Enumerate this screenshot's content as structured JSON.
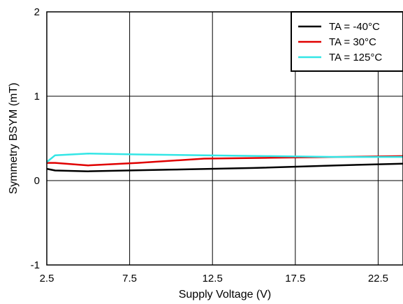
{
  "chart_data": {
    "type": "line",
    "xlabel": "Supply Voltage (V)",
    "ylabel": "Symmetry BSYM (mT)",
    "xlim": [
      2.5,
      24
    ],
    "ylim": [
      -1,
      2
    ],
    "xticks": [
      2.5,
      7.5,
      12.5,
      17.5,
      22.5
    ],
    "xtick_labels": [
      "2.5",
      "7.5",
      "12.5",
      "17.5",
      "22.5"
    ],
    "yticks": [
      -1,
      0,
      1,
      2
    ],
    "ytick_labels": [
      "-1",
      "0",
      "1",
      "2"
    ],
    "grid": true,
    "legend_position": "top-right",
    "series": [
      {
        "name": "TA = -40°C",
        "color": "#000000",
        "x": [
          2.5,
          3,
          5,
          10,
          15,
          20,
          24
        ],
        "y": [
          0.14,
          0.12,
          0.11,
          0.13,
          0.15,
          0.18,
          0.2
        ]
      },
      {
        "name": "TA = 30°C",
        "color": "#e00000",
        "x": [
          2.5,
          3,
          5,
          8,
          12,
          16,
          20,
          24
        ],
        "y": [
          0.21,
          0.21,
          0.18,
          0.21,
          0.26,
          0.27,
          0.28,
          0.29
        ]
      },
      {
        "name": "TA = 125°C",
        "color": "#33e6e6",
        "x": [
          2.5,
          3,
          5,
          8,
          12,
          16,
          20,
          24
        ],
        "y": [
          0.22,
          0.3,
          0.32,
          0.31,
          0.3,
          0.29,
          0.28,
          0.28
        ]
      }
    ]
  }
}
